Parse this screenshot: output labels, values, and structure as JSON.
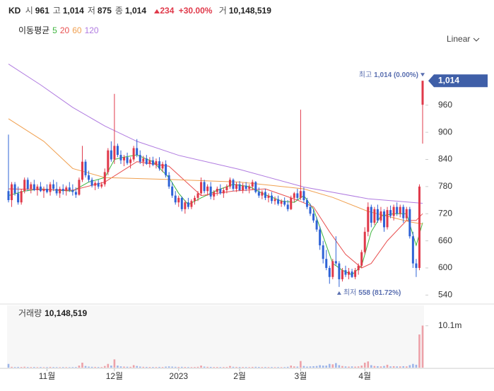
{
  "header": {
    "symbol": "KD",
    "fields": [
      {
        "label": "시",
        "value": "961"
      },
      {
        "label": "고",
        "value": "1,014"
      },
      {
        "label": "저",
        "value": "875"
      },
      {
        "label": "종",
        "value": "1,014"
      }
    ],
    "change": "234",
    "change_pct": "+30.00%",
    "volume_label": "거",
    "volume": "10,148,519"
  },
  "chart_data": {
    "type": "candlestick",
    "ma_title": "이동평균",
    "scale_label": "Linear",
    "up_color": "#e0394a",
    "down_color": "#2f63d6",
    "ylim": [
      528,
      1055
    ],
    "yticks": [
      540,
      600,
      660,
      720,
      780,
      840,
      900,
      960
    ],
    "price_tag": {
      "value": 1014,
      "label": "1,014"
    },
    "xticks": [
      {
        "value": 12,
        "label": "11월"
      },
      {
        "value": 33,
        "label": "12월"
      },
      {
        "value": 53,
        "label": "2023"
      },
      {
        "value": 72,
        "label": "2월"
      },
      {
        "value": 91,
        "label": "3월"
      },
      {
        "value": 111,
        "label": "4월"
      }
    ],
    "open": [
      770,
      750,
      785,
      765,
      745,
      770,
      795,
      775,
      785,
      772,
      780,
      770,
      775,
      768,
      785,
      775,
      765,
      775,
      770,
      778,
      772,
      768,
      762,
      795,
      835,
      805,
      795,
      782,
      788,
      780,
      785,
      812,
      860,
      840,
      870,
      850,
      838,
      845,
      832,
      840,
      865,
      850,
      835,
      842,
      830,
      838,
      828,
      836,
      820,
      830,
      805,
      780,
      760,
      745,
      755,
      730,
      745,
      735,
      748,
      755,
      765,
      790,
      770,
      780,
      758,
      768,
      775,
      765,
      772,
      780,
      795,
      775,
      785,
      772,
      782,
      775,
      780,
      790,
      768,
      760,
      768,
      755,
      760,
      748,
      752,
      742,
      748,
      740,
      730,
      755,
      765,
      755,
      770,
      750,
      735,
      720,
      705,
      685,
      650,
      620,
      600,
      580,
      615,
      610,
      575,
      595,
      585,
      592,
      580,
      595,
      605,
      635,
      680,
      735,
      700,
      730,
      705,
      725,
      690,
      728,
      715,
      735,
      720,
      735,
      710,
      730,
      670,
      610,
      600,
      961
    ],
    "high": [
      895,
      790,
      790,
      780,
      775,
      800,
      800,
      790,
      795,
      785,
      790,
      780,
      785,
      790,
      795,
      790,
      780,
      785,
      782,
      790,
      785,
      778,
      800,
      870,
      840,
      815,
      800,
      792,
      795,
      790,
      820,
      865,
      880,
      985,
      875,
      860,
      850,
      855,
      845,
      870,
      885,
      860,
      848,
      850,
      845,
      846,
      842,
      845,
      835,
      838,
      812,
      790,
      770,
      760,
      758,
      750,
      755,
      752,
      760,
      770,
      800,
      795,
      785,
      790,
      772,
      780,
      785,
      778,
      785,
      800,
      798,
      790,
      792,
      788,
      790,
      785,
      795,
      792,
      778,
      772,
      775,
      765,
      768,
      758,
      760,
      752,
      756,
      750,
      760,
      768,
      775,
      950,
      778,
      755,
      742,
      730,
      712,
      692,
      660,
      640,
      605,
      620,
      670,
      615,
      600,
      605,
      600,
      598,
      600,
      610,
      640,
      690,
      745,
      740,
      735,
      740,
      735,
      730,
      735,
      738,
      740,
      745,
      740,
      740,
      735,
      735,
      680,
      620,
      785,
      1014
    ],
    "low": [
      745,
      735,
      760,
      740,
      740,
      765,
      770,
      765,
      770,
      760,
      768,
      755,
      765,
      760,
      770,
      760,
      755,
      762,
      760,
      768,
      760,
      755,
      760,
      790,
      800,
      790,
      778,
      772,
      775,
      776,
      780,
      805,
      835,
      830,
      845,
      830,
      825,
      828,
      820,
      835,
      845,
      830,
      825,
      828,
      822,
      825,
      820,
      815,
      812,
      800,
      775,
      755,
      740,
      735,
      725,
      720,
      730,
      730,
      740,
      748,
      760,
      765,
      760,
      752,
      750,
      760,
      762,
      755,
      765,
      775,
      770,
      768,
      770,
      765,
      770,
      765,
      772,
      765,
      755,
      752,
      750,
      745,
      742,
      740,
      738,
      735,
      736,
      725,
      728,
      745,
      750,
      750,
      745,
      730,
      715,
      700,
      680,
      640,
      610,
      595,
      565,
      575,
      605,
      558,
      570,
      580,
      575,
      578,
      575,
      585,
      600,
      630,
      670,
      690,
      695,
      700,
      700,
      680,
      685,
      710,
      705,
      715,
      712,
      700,
      705,
      665,
      600,
      580,
      595,
      875
    ],
    "close": [
      750,
      785,
      765,
      745,
      770,
      795,
      775,
      785,
      772,
      780,
      770,
      775,
      768,
      785,
      775,
      765,
      775,
      770,
      778,
      772,
      768,
      762,
      795,
      835,
      805,
      795,
      782,
      788,
      780,
      785,
      812,
      860,
      840,
      870,
      850,
      838,
      845,
      832,
      840,
      865,
      850,
      835,
      842,
      830,
      838,
      828,
      836,
      820,
      830,
      805,
      780,
      760,
      745,
      755,
      730,
      745,
      735,
      748,
      755,
      765,
      790,
      770,
      780,
      758,
      768,
      775,
      765,
      772,
      780,
      795,
      775,
      785,
      772,
      782,
      775,
      780,
      790,
      768,
      760,
      768,
      755,
      760,
      748,
      752,
      742,
      748,
      740,
      730,
      755,
      765,
      755,
      770,
      750,
      735,
      720,
      705,
      685,
      650,
      620,
      600,
      580,
      615,
      610,
      575,
      595,
      585,
      592,
      580,
      595,
      605,
      635,
      680,
      735,
      700,
      730,
      705,
      725,
      690,
      728,
      715,
      735,
      720,
      735,
      710,
      730,
      670,
      610,
      600,
      780,
      1014
    ],
    "annotations": [
      {
        "label": "최고",
        "text": "1,014 (0.00%)"
      },
      {
        "label": "최저",
        "text": "558 (81.72%)"
      }
    ],
    "moving_averages": [
      {
        "name": "5",
        "color": "#3db53d",
        "x": [
          0,
          5,
          10,
          15,
          20,
          25,
          30,
          33,
          36,
          40,
          45,
          50,
          53,
          56,
          60,
          65,
          70,
          75,
          80,
          85,
          89,
          92,
          95,
          98,
          101,
          104,
          107,
          110,
          113,
          116,
          120,
          124,
          127,
          129
        ],
        "values": [
          760,
          770,
          775,
          772,
          770,
          790,
          800,
          840,
          845,
          850,
          835,
          800,
          765,
          740,
          755,
          772,
          785,
          780,
          762,
          748,
          745,
          760,
          730,
          670,
          610,
          595,
          585,
          605,
          680,
          715,
          720,
          720,
          650,
          700
        ]
      },
      {
        "name": "20",
        "color": "#e85050",
        "x": [
          0,
          20,
          30,
          40,
          50,
          60,
          70,
          80,
          90,
          95,
          100,
          105,
          110,
          113,
          118,
          124,
          127,
          129
        ],
        "values": [
          775,
          772,
          790,
          835,
          825,
          760,
          770,
          775,
          750,
          735,
          680,
          630,
          600,
          610,
          660,
          705,
          705,
          720
        ]
      },
      {
        "name": "60",
        "color": "#f0a050",
        "x": [
          0,
          11,
          20,
          30,
          53,
          72,
          92,
          101,
          112,
          125,
          129
        ],
        "values": [
          930,
          880,
          820,
          800,
          795,
          790,
          775,
          756,
          725,
          702,
          697
        ]
      },
      {
        "name": "120",
        "color": "#b07be0",
        "x": [
          0,
          10,
          20,
          30,
          40,
          53,
          72,
          92,
          112,
          129
        ],
        "values": [
          1051,
          1005,
          955,
          914,
          880,
          849,
          818,
          779,
          753,
          743
        ]
      }
    ],
    "volume_title": "거래량",
    "volume_last_label": "10,148,519",
    "volume_ylim": [
      0,
      15000000
    ],
    "volume_yticks": [
      {
        "value": 10100000,
        "label": "10.1m"
      }
    ],
    "volumes": [
      900000,
      200000,
      150000,
      180000,
      160000,
      220000,
      150000,
      140000,
      160000,
      130000,
      150000,
      120000,
      140000,
      180000,
      150000,
      130000,
      120000,
      140000,
      130000,
      120000,
      140000,
      150000,
      500000,
      1200000,
      400000,
      250000,
      200000,
      180000,
      160000,
      150000,
      400000,
      900000,
      500000,
      2000000,
      500000,
      300000,
      250000,
      220000,
      200000,
      600000,
      400000,
      250000,
      200000,
      180000,
      170000,
      160000,
      150000,
      180000,
      150000,
      250000,
      300000,
      250000,
      200000,
      180000,
      200000,
      170000,
      150000,
      140000,
      160000,
      200000,
      500000,
      250000,
      200000,
      180000,
      150000,
      160000,
      140000,
      150000,
      160000,
      400000,
      200000,
      180000,
      170000,
      160000,
      150000,
      140000,
      180000,
      200000,
      170000,
      150000,
      160000,
      140000,
      150000,
      130000,
      140000,
      130000,
      140000,
      200000,
      500000,
      300000,
      250000,
      1600000,
      400000,
      250000,
      300000,
      350000,
      400000,
      600000,
      500000,
      500000,
      900000,
      800000,
      1100000,
      600000,
      400000,
      300000,
      250000,
      300000,
      250000,
      300000,
      500000,
      1200000,
      1500000,
      600000,
      400000,
      350000,
      300000,
      400000,
      700000,
      300000,
      350000,
      300000,
      300000,
      350000,
      300000,
      600000,
      900000,
      700000,
      8000000,
      10148519
    ]
  }
}
